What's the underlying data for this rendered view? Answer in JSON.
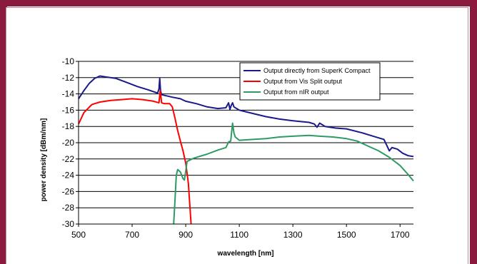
{
  "chart_data": {
    "type": "line",
    "title": "",
    "xlabel": "wavelength [nm]",
    "ylabel": "power density [dBm/nm]",
    "xlim": [
      500,
      1750
    ],
    "ylim": [
      -30,
      -10
    ],
    "x_ticks": [
      500,
      700,
      900,
      1100,
      1300,
      1500,
      1700
    ],
    "y_ticks": [
      -10,
      -12,
      -14,
      -16,
      -18,
      -20,
      -22,
      -24,
      -26,
      -28,
      -30
    ],
    "grid": {
      "horizontal": true,
      "vertical": false
    },
    "legend_position": "top-right",
    "series": [
      {
        "name": "Output directly from SuperK Compact",
        "color": "#1a1a8c",
        "points": [
          [
            500,
            -14.6
          ],
          [
            520,
            -13.6
          ],
          [
            540,
            -12.7
          ],
          [
            560,
            -12.1
          ],
          [
            580,
            -11.8
          ],
          [
            600,
            -11.9
          ],
          [
            640,
            -12.1
          ],
          [
            680,
            -12.6
          ],
          [
            720,
            -13.1
          ],
          [
            760,
            -13.5
          ],
          [
            795,
            -13.9
          ],
          [
            800,
            -13.4
          ],
          [
            803,
            -12.1
          ],
          [
            806,
            -13.6
          ],
          [
            810,
            -14.1
          ],
          [
            850,
            -14.4
          ],
          [
            880,
            -14.6
          ],
          [
            900,
            -14.9
          ],
          [
            940,
            -15.2
          ],
          [
            980,
            -15.6
          ],
          [
            1020,
            -15.8
          ],
          [
            1050,
            -15.7
          ],
          [
            1060,
            -15.1
          ],
          [
            1065,
            -15.9
          ],
          [
            1070,
            -15.4
          ],
          [
            1075,
            -15.1
          ],
          [
            1080,
            -15.6
          ],
          [
            1100,
            -16.0
          ],
          [
            1150,
            -16.4
          ],
          [
            1200,
            -16.8
          ],
          [
            1250,
            -17.1
          ],
          [
            1300,
            -17.3
          ],
          [
            1360,
            -17.5
          ],
          [
            1380,
            -17.7
          ],
          [
            1390,
            -18.1
          ],
          [
            1400,
            -17.6
          ],
          [
            1420,
            -18.0
          ],
          [
            1460,
            -18.2
          ],
          [
            1500,
            -18.3
          ],
          [
            1560,
            -18.8
          ],
          [
            1600,
            -19.2
          ],
          [
            1640,
            -19.6
          ],
          [
            1650,
            -20.3
          ],
          [
            1660,
            -21.0
          ],
          [
            1670,
            -20.6
          ],
          [
            1690,
            -20.8
          ],
          [
            1710,
            -21.3
          ],
          [
            1730,
            -21.6
          ],
          [
            1750,
            -21.7
          ]
        ]
      },
      {
        "name": "Output from Vis Split output",
        "color": "#ff0000",
        "points": [
          [
            500,
            -17.7
          ],
          [
            520,
            -16.3
          ],
          [
            550,
            -15.3
          ],
          [
            580,
            -15.0
          ],
          [
            620,
            -14.8
          ],
          [
            660,
            -14.7
          ],
          [
            700,
            -14.6
          ],
          [
            740,
            -14.7
          ],
          [
            780,
            -14.9
          ],
          [
            800,
            -15.1
          ],
          [
            805,
            -13.6
          ],
          [
            810,
            -15.1
          ],
          [
            820,
            -15.2
          ],
          [
            840,
            -15.2
          ],
          [
            850,
            -15.6
          ],
          [
            860,
            -17.0
          ],
          [
            870,
            -18.5
          ],
          [
            880,
            -19.8
          ],
          [
            890,
            -21.0
          ],
          [
            900,
            -22.5
          ],
          [
            910,
            -25.0
          ],
          [
            915,
            -27.5
          ],
          [
            920,
            -30.0
          ]
        ]
      },
      {
        "name": "Output from nIR output",
        "color": "#2e9a64",
        "points": [
          [
            855,
            -30.0
          ],
          [
            860,
            -27.0
          ],
          [
            865,
            -24.0
          ],
          [
            870,
            -23.3
          ],
          [
            880,
            -23.6
          ],
          [
            890,
            -24.4
          ],
          [
            895,
            -24.6
          ],
          [
            900,
            -23.5
          ],
          [
            905,
            -22.3
          ],
          [
            930,
            -21.9
          ],
          [
            980,
            -21.4
          ],
          [
            1020,
            -20.9
          ],
          [
            1050,
            -20.6
          ],
          [
            1060,
            -19.9
          ],
          [
            1068,
            -19.8
          ],
          [
            1072,
            -18.5
          ],
          [
            1075,
            -17.6
          ],
          [
            1080,
            -18.8
          ],
          [
            1085,
            -19.3
          ],
          [
            1100,
            -19.7
          ],
          [
            1150,
            -19.6
          ],
          [
            1200,
            -19.5
          ],
          [
            1250,
            -19.3
          ],
          [
            1300,
            -19.2
          ],
          [
            1360,
            -19.1
          ],
          [
            1400,
            -19.2
          ],
          [
            1450,
            -19.3
          ],
          [
            1500,
            -19.5
          ],
          [
            1540,
            -19.8
          ],
          [
            1580,
            -20.4
          ],
          [
            1620,
            -21.0
          ],
          [
            1660,
            -21.8
          ],
          [
            1700,
            -22.8
          ],
          [
            1730,
            -23.9
          ],
          [
            1750,
            -24.7
          ]
        ]
      }
    ]
  }
}
